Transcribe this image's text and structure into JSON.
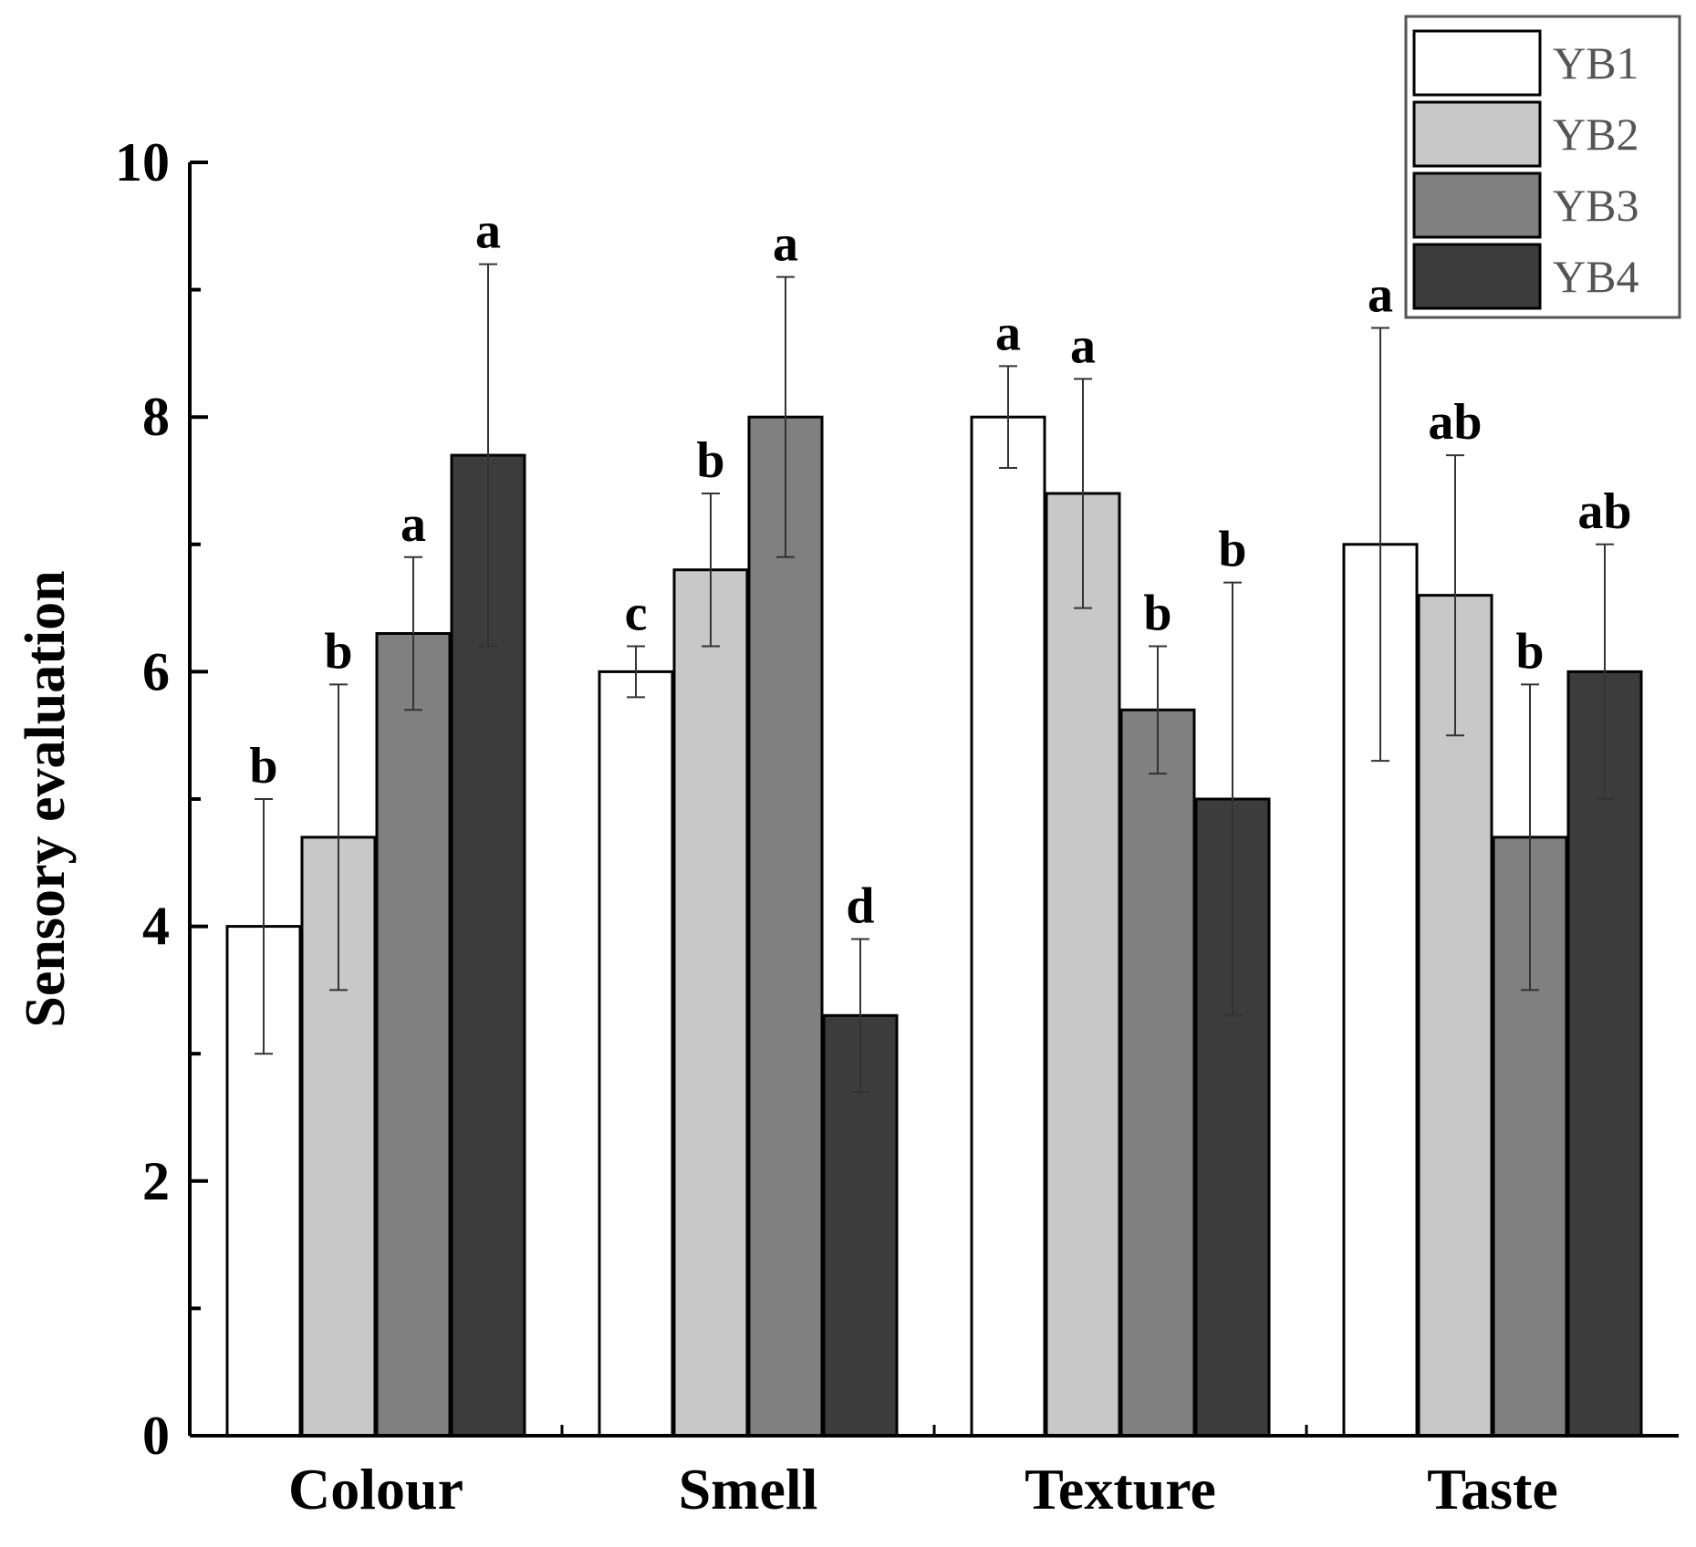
{
  "chart_data": {
    "type": "bar",
    "title": "",
    "xlabel": "",
    "ylabel": "Sensory evaluation",
    "ylim": [
      0,
      10
    ],
    "yticks": [
      0,
      2,
      4,
      6,
      8,
      10
    ],
    "grid": false,
    "legend_position": "top-right",
    "categories": [
      "Colour",
      "Smell",
      "Texture",
      "Taste"
    ],
    "series": [
      {
        "name": "YB1",
        "color": "#ffffff",
        "values": [
          4.0,
          6.0,
          8.0,
          7.0
        ],
        "errors": [
          1.0,
          0.2,
          0.4,
          1.7
        ],
        "labels": [
          "b",
          "c",
          "a",
          "a"
        ]
      },
      {
        "name": "YB2",
        "color": "#c8c8c8",
        "values": [
          4.7,
          6.8,
          7.4,
          6.6
        ],
        "errors": [
          1.2,
          0.6,
          0.9,
          1.1
        ],
        "labels": [
          "b",
          "b",
          "a",
          "ab"
        ]
      },
      {
        "name": "YB3",
        "color": "#808080",
        "values": [
          6.3,
          8.0,
          5.7,
          4.7
        ],
        "errors": [
          0.6,
          1.1,
          0.5,
          1.2
        ],
        "labels": [
          "a",
          "a",
          "b",
          "b"
        ]
      },
      {
        "name": "YB4",
        "color": "#3c3c3c",
        "values": [
          7.7,
          3.3,
          5.0,
          6.0
        ],
        "errors": [
          1.5,
          0.6,
          1.7,
          1.0
        ],
        "labels": [
          "a",
          "d",
          "b",
          "ab"
        ]
      }
    ]
  }
}
